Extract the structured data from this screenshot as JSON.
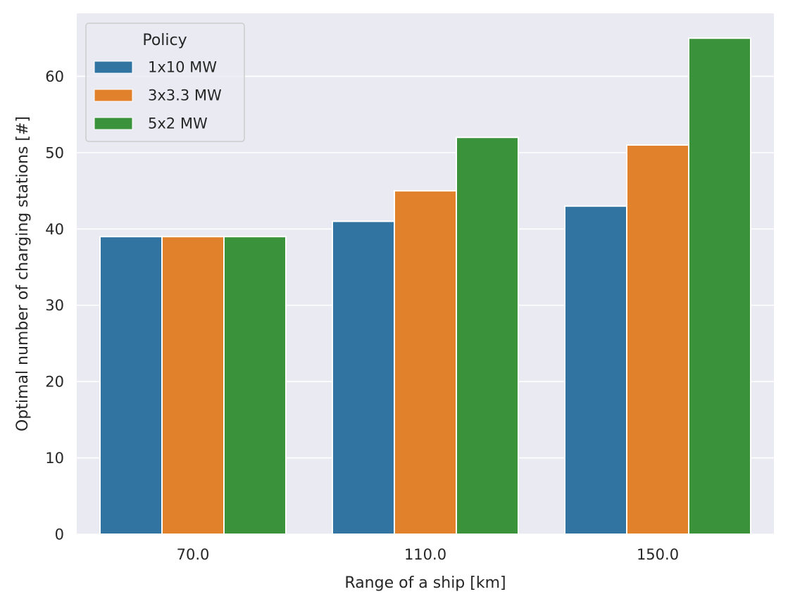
{
  "chart_data": {
    "type": "bar",
    "categories": [
      "70.0",
      "110.0",
      "150.0"
    ],
    "series": [
      {
        "name": "1x10 MW",
        "color": "#3274a1",
        "values": [
          39,
          41,
          43
        ]
      },
      {
        "name": "3x3.3 MW",
        "color": "#e1812c",
        "values": [
          39,
          45,
          51
        ]
      },
      {
        "name": "5x2 MW",
        "color": "#3a923a",
        "values": [
          39,
          52,
          65
        ]
      }
    ],
    "xlabel": "Range of a ship [km]",
    "ylabel": "Optimal number of charging stations [#]",
    "ylim": [
      0,
      68.25
    ],
    "yticks": [
      0,
      10,
      20,
      30,
      40,
      50,
      60
    ],
    "grid": true,
    "background": "#eaeaf2",
    "legend": {
      "title": "Policy",
      "placement": "top-left"
    }
  }
}
